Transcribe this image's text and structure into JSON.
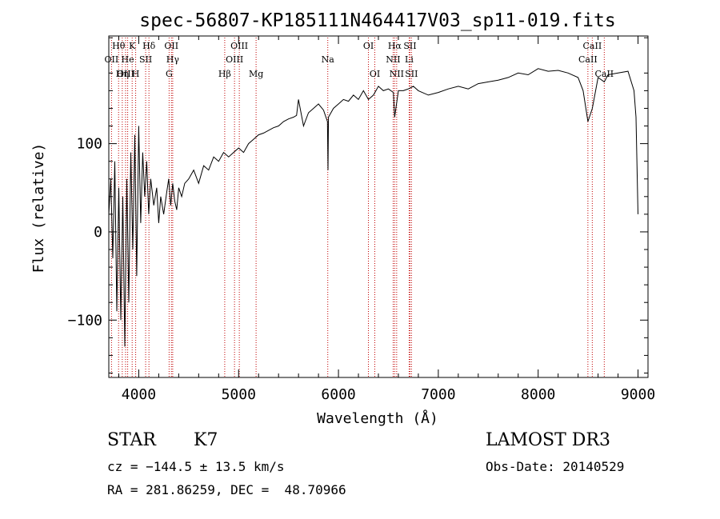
{
  "chart_data": {
    "type": "line",
    "title": "spec-56807-KP185111N464417V03_sp11-019.fits",
    "xlabel": "Wavelength (Å)",
    "ylabel": "Flux (relative)",
    "xlim": [
      3700,
      9100
    ],
    "ylim": [
      -165,
      222
    ],
    "x_ticks": [
      4000,
      5000,
      6000,
      7000,
      8000,
      9000
    ],
    "y_ticks": [
      -100,
      0,
      100
    ],
    "x_tick_labels": [
      "4000",
      "5000",
      "6000",
      "7000",
      "8000",
      "9000"
    ],
    "y_tick_labels": [
      "−100",
      "0",
      "100"
    ],
    "grid": false,
    "series": [
      {
        "color": "#000000",
        "x": [
          3700,
          3720,
          3740,
          3760,
          3780,
          3800,
          3820,
          3840,
          3860,
          3880,
          3900,
          3920,
          3940,
          3960,
          3980,
          4000,
          4020,
          4040,
          4060,
          4080,
          4100,
          4120,
          4150,
          4180,
          4200,
          4220,
          4250,
          4280,
          4300,
          4320,
          4340,
          4360,
          4380,
          4400,
          4430,
          4460,
          4500,
          4550,
          4600,
          4650,
          4700,
          4750,
          4800,
          4850,
          4900,
          4950,
          5000,
          5050,
          5100,
          5150,
          5200,
          5250,
          5300,
          5350,
          5400,
          5450,
          5500,
          5550,
          5580,
          5600,
          5650,
          5700,
          5750,
          5800,
          5850,
          5890,
          5895,
          5900,
          5950,
          6000,
          6050,
          6100,
          6150,
          6200,
          6250,
          6300,
          6350,
          6400,
          6450,
          6500,
          6550,
          6563,
          6600,
          6650,
          6700,
          6750,
          6800,
          6900,
          7000,
          7100,
          7200,
          7300,
          7400,
          7500,
          7600,
          7700,
          7800,
          7900,
          8000,
          8100,
          8200,
          8300,
          8400,
          8450,
          8498,
          8542,
          8600,
          8662,
          8700,
          8800,
          8900,
          8960,
          8980,
          9000
        ],
        "y": [
          20,
          60,
          -30,
          80,
          -90,
          50,
          -100,
          40,
          -130,
          60,
          -80,
          90,
          -20,
          110,
          -50,
          120,
          10,
          90,
          40,
          80,
          20,
          60,
          30,
          50,
          10,
          40,
          20,
          45,
          60,
          30,
          55,
          35,
          25,
          50,
          40,
          55,
          60,
          70,
          55,
          75,
          70,
          85,
          80,
          90,
          85,
          90,
          95,
          90,
          100,
          105,
          110,
          112,
          115,
          118,
          120,
          125,
          128,
          130,
          132,
          150,
          120,
          135,
          140,
          145,
          138,
          125,
          70,
          130,
          140,
          145,
          150,
          148,
          155,
          150,
          160,
          150,
          155,
          165,
          160,
          162,
          158,
          130,
          160,
          160,
          162,
          165,
          160,
          155,
          158,
          162,
          165,
          162,
          168,
          170,
          172,
          175,
          180,
          178,
          185,
          182,
          183,
          180,
          175,
          160,
          125,
          140,
          175,
          170,
          178,
          180,
          182,
          160,
          130,
          20
        ]
      }
    ],
    "line_labels": [
      {
        "text": "Hθ",
        "x": 3798,
        "row": 1
      },
      {
        "text": "K",
        "x": 3934,
        "row": 1
      },
      {
        "text": "Hδ",
        "x": 4102,
        "row": 1
      },
      {
        "text": "OII",
        "x": 4327,
        "row": 1
      },
      {
        "text": "OIII",
        "x": 5007,
        "row": 1
      },
      {
        "text": "OI",
        "x": 6300,
        "row": 1
      },
      {
        "text": "Hα",
        "x": 6563,
        "row": 1
      },
      {
        "text": "SII",
        "x": 6716,
        "row": 1
      },
      {
        "text": "CaII",
        "x": 8542,
        "row": 1
      },
      {
        "text": "OII",
        "x": 3727,
        "row": 2
      },
      {
        "text": "He",
        "x": 3889,
        "row": 2
      },
      {
        "text": "SII",
        "x": 4069,
        "row": 2
      },
      {
        "text": "Hγ",
        "x": 4340,
        "row": 2
      },
      {
        "text": "OIII",
        "x": 4959,
        "row": 2
      },
      {
        "text": "Na",
        "x": 5893,
        "row": 2
      },
      {
        "text": "NII",
        "x": 6548,
        "row": 2
      },
      {
        "text": "Li",
        "x": 6708,
        "row": 2
      },
      {
        "text": "CaII",
        "x": 8498,
        "row": 2
      },
      {
        "text": "OIII",
        "x": 3868,
        "row": 3
      },
      {
        "text": "Hη",
        "x": 3835,
        "row": 3
      },
      {
        "text": "H",
        "x": 3969,
        "row": 3
      },
      {
        "text": "G",
        "x": 4304,
        "row": 3
      },
      {
        "text": "Hβ",
        "x": 4861,
        "row": 3
      },
      {
        "text": "Mg",
        "x": 5175,
        "row": 3
      },
      {
        "text": "OI",
        "x": 6364,
        "row": 3
      },
      {
        "text": "NII",
        "x": 6583,
        "row": 3
      },
      {
        "text": "SII",
        "x": 6731,
        "row": 3
      },
      {
        "text": "CaII",
        "x": 8662,
        "row": 3
      }
    ],
    "line_marker_color": "#c00000"
  },
  "info": {
    "class": "STAR",
    "subclass": "K7",
    "survey": "LAMOST DR3",
    "cz": "cz = −144.5 ± 13.5 km/s",
    "obs_date": "Obs-Date: 20140529",
    "coords": "RA = 281.86259, DEC =  48.70966"
  }
}
